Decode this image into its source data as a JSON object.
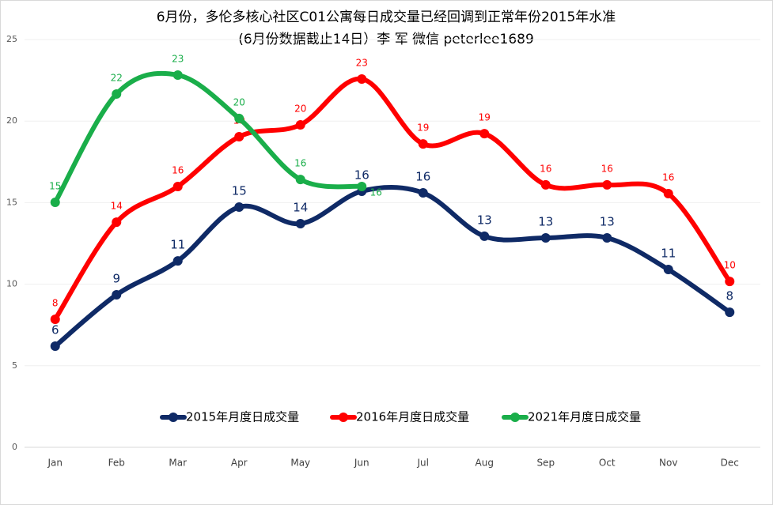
{
  "chart_data": {
    "type": "line",
    "title": "6月份，多伦多核心社区C01公寓每日成交量已经回调到正常年份2015年水准",
    "subtitle": "(6月份数据截止14日）李 军 微信 peterlee1689",
    "categories": [
      "Jan",
      "Feb",
      "Mar",
      "Apr",
      "May",
      "Jun",
      "Jul",
      "Aug",
      "Sep",
      "Oct",
      "Nov",
      "Dec"
    ],
    "series": [
      {
        "name": "2015年月度日成交量",
        "color": "#0f2a66",
        "values": [
          6.2,
          9.35,
          11.43,
          14.73,
          13.71,
          15.7,
          15.6,
          12.94,
          12.84,
          12.84,
          10.9,
          8.28
        ],
        "value_labels": [
          "6",
          "9",
          "11",
          "15",
          "14",
          "16",
          "16",
          "13",
          "13",
          "13",
          "11",
          "8"
        ]
      },
      {
        "name": "2016年月度日成交量",
        "color": "#ff0000",
        "values": [
          7.85,
          13.8,
          15.99,
          19.04,
          19.77,
          22.58,
          18.6,
          19.23,
          16.09,
          16.09,
          15.55,
          10.17
        ],
        "value_labels": [
          "8",
          "14",
          "16",
          "19",
          "20",
          "23",
          "19",
          "19",
          "16",
          "16",
          "16",
          "10"
        ]
      },
      {
        "name": "2021年月度日成交量",
        "color": "#1aae4a",
        "values": [
          15.02,
          21.66,
          22.82,
          20.16,
          16.42,
          15.99,
          null,
          null,
          null,
          null,
          null,
          null
        ],
        "value_labels": [
          "15",
          "22",
          "23",
          "20",
          "16",
          "16",
          null,
          null,
          null,
          null,
          null,
          null
        ]
      }
    ],
    "ylim": [
      0,
      25
    ],
    "yticks": [
      0,
      5,
      10,
      15,
      20,
      25
    ],
    "grid": true,
    "legend": "bottom"
  }
}
